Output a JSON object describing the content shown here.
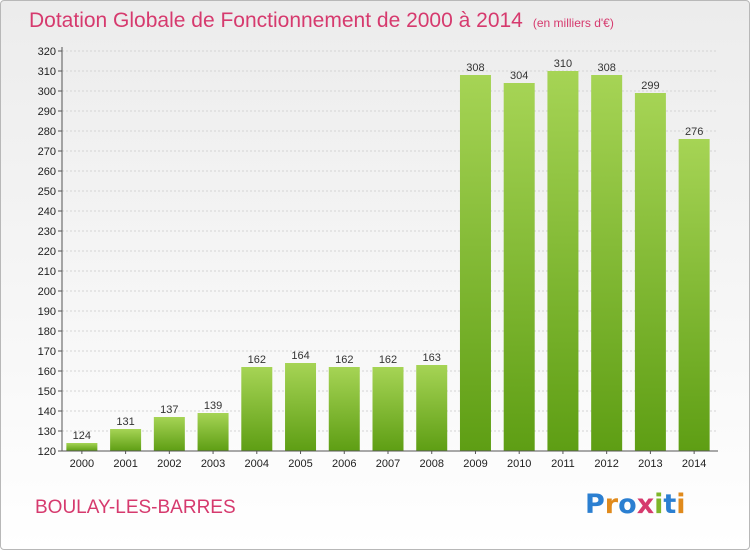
{
  "header": {
    "title": "Dotation Globale de Fonctionnement de 2000 à 2014",
    "unit": "(en milliers d'€)"
  },
  "footer": {
    "commune": "BOULAY-LES-BARRES",
    "logo": "Proxiti"
  },
  "colors": {
    "title": "#d63a6e",
    "bar_top": "#a6d455",
    "bar_bottom": "#5e9e14"
  },
  "chart_data": {
    "type": "bar",
    "title": "Dotation Globale de Fonctionnement de 2000 à 2014",
    "subtitle": "(en milliers d'€)",
    "categories": [
      "2000",
      "2001",
      "2002",
      "2003",
      "2004",
      "2005",
      "2006",
      "2007",
      "2008",
      "2009",
      "2010",
      "2011",
      "2012",
      "2013",
      "2014"
    ],
    "values": [
      124,
      131,
      137,
      139,
      162,
      164,
      162,
      162,
      163,
      308,
      304,
      310,
      308,
      299,
      276
    ],
    "ylim": [
      120,
      320
    ],
    "ytick_step": 10,
    "grid": true
  }
}
